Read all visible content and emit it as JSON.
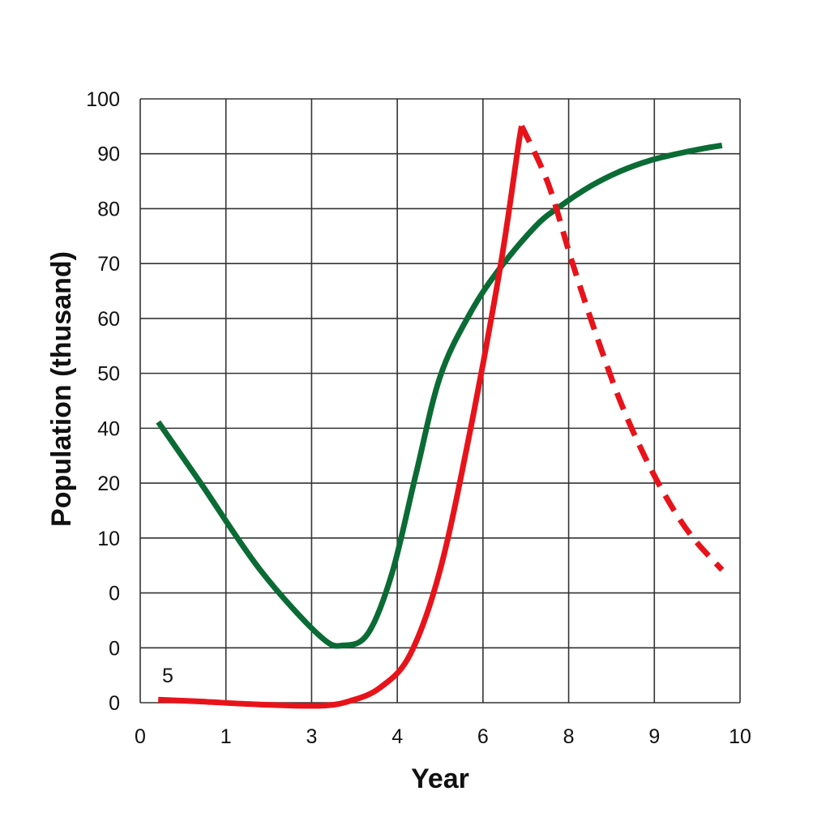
{
  "chart_data": {
    "type": "line",
    "xlabel": "Year",
    "ylabel": "Population (thusand)",
    "x_tick_labels": [
      "0",
      "1",
      "3",
      "4",
      "6",
      "8",
      "9",
      "10"
    ],
    "y_tick_labels": [
      "0",
      "0",
      "0",
      "10",
      "20",
      "40",
      "50",
      "60",
      "70",
      "80",
      "90",
      "100"
    ],
    "xlim": [
      0,
      10
    ],
    "ylim": [
      0,
      100
    ],
    "grid": true,
    "annotations": [
      "5"
    ],
    "series": [
      {
        "color": "#0b6b35",
        "style": "solid",
        "x": [
          0.3,
          1.0,
          2.0,
          3.0,
          3.4,
          3.8,
          4.2,
          4.6,
          5.0,
          5.5,
          6.0,
          6.6,
          7.0,
          7.5,
          8.0,
          8.5,
          9.0,
          9.4,
          9.7
        ],
        "y": [
          46.5,
          36.5,
          22.0,
          11.0,
          9.5,
          11.5,
          21.5,
          38.0,
          54.0,
          64.5,
          72.0,
          79.0,
          82.2,
          85.5,
          88.0,
          89.8,
          91.0,
          91.8,
          92.3
        ]
      },
      {
        "color": "#e8131a",
        "style": "solid",
        "x": [
          0.3,
          1.0,
          2.0,
          3.0,
          3.5,
          4.0,
          4.5,
          5.0,
          5.5,
          6.0,
          6.3,
          6.36
        ],
        "y": [
          0.5,
          0.2,
          -0.3,
          -0.5,
          0.3,
          2.5,
          8.0,
          22.0,
          45.0,
          72.0,
          92.0,
          95.5
        ]
      },
      {
        "color": "#e8131a",
        "style": "dashed",
        "x": [
          6.36,
          6.8,
          7.2,
          7.6,
          8.0,
          8.4,
          8.8,
          9.2,
          9.7
        ],
        "y": [
          95.5,
          86.0,
          73.0,
          61.0,
          50.0,
          41.0,
          33.5,
          27.5,
          22.0
        ]
      }
    ]
  }
}
